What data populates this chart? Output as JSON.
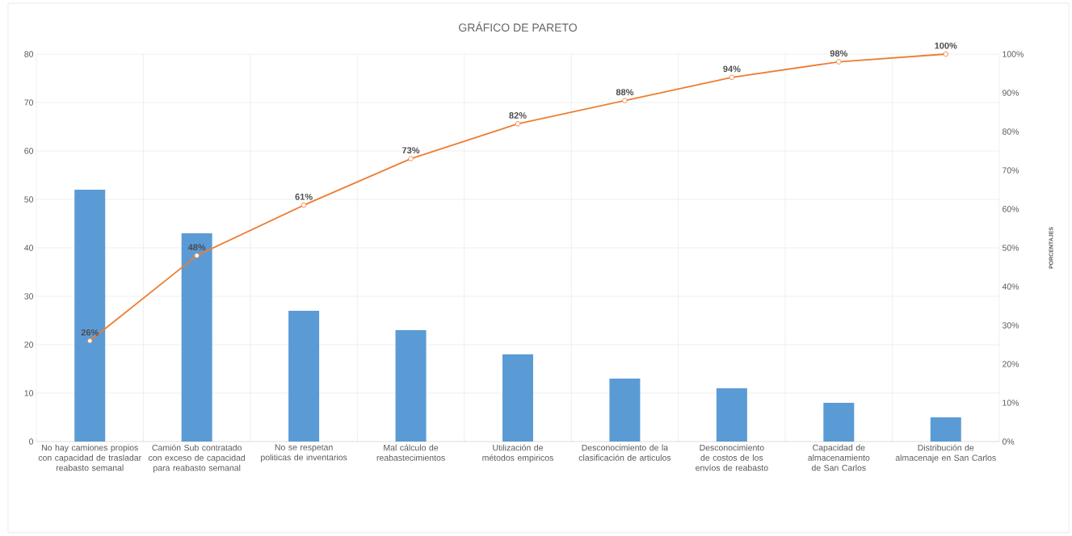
{
  "chart_data": {
    "type": "bar",
    "title": "GRÁFICO DE PARETO",
    "y2label": "PORCENTAJES",
    "categories": [
      "No hay camiones propios con capacidad de trasladar reabasto semanal",
      "Camión Sub contratado con exceso de capacidad para reabasto semanal",
      "No se respetan politicas de inventarios",
      "Mal cálculo de reabastecimientos",
      "Utilización de métodos empiricos",
      "Desconocimiento de la clasificación de articulos",
      "Desconocimiento de costos de los envíos de reabasto",
      "Capacidad de almacenamiento de San Carlos",
      "Distribución de almacenaje en San Carlos"
    ],
    "series": [
      {
        "color": "#5b9bd5",
        "values": [
          52,
          43,
          27,
          23,
          18,
          13,
          11,
          8,
          5
        ]
      },
      {
        "type": "line",
        "axis": "y2",
        "color": "#ed7d31",
        "values": [
          26,
          48,
          61,
          73,
          82,
          88,
          94,
          98,
          100
        ],
        "value_labels": [
          "26%",
          "48%",
          "61%",
          "73%",
          "82%",
          "88%",
          "94%",
          "98%",
          "100%"
        ]
      }
    ],
    "marker": "circle",
    "ylim": [
      0,
      80
    ],
    "yticks": [
      0,
      10,
      20,
      30,
      40,
      50,
      60,
      70,
      80
    ],
    "y2lim": [
      0,
      100
    ],
    "y2ticks": [
      {
        "value": 0,
        "label": "0%"
      },
      {
        "value": 10,
        "label": "10%"
      },
      {
        "value": 20,
        "label": "20%"
      },
      {
        "value": 30,
        "label": "30%"
      },
      {
        "value": 40,
        "label": "40%"
      },
      {
        "value": 50,
        "label": "50%"
      },
      {
        "value": 60,
        "label": "60%"
      },
      {
        "value": 70,
        "label": "70%"
      },
      {
        "value": 80,
        "label": "80%"
      },
      {
        "value": 90,
        "label": "90%"
      },
      {
        "value": 100,
        "label": "100%"
      }
    ],
    "grid": true
  }
}
